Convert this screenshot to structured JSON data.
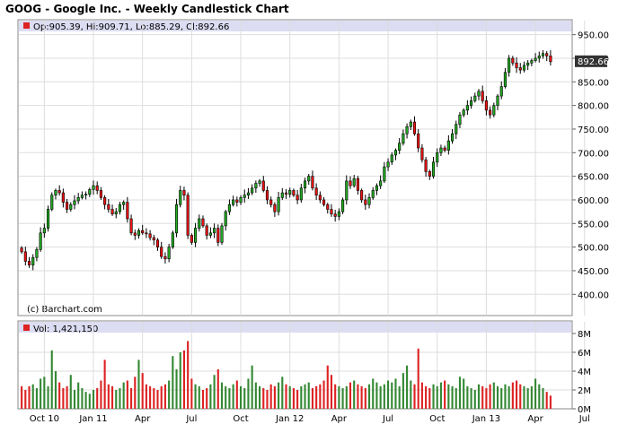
{
  "chart_data": {
    "type": "candlestick",
    "title": "GOOG - Google Inc. - Weekly Candlestick Chart",
    "ohlc_label": "Op:905.39, Hi:909.71, Lo:885.29, Cl:892.66",
    "last_price_label": "892.66",
    "last_price": 892.66,
    "copyright": "(c) Barchart.com",
    "volume_label": "Vol: 1,421,150",
    "price_ylim": [
      355,
      955
    ],
    "price_ticks": [
      950,
      900,
      850,
      800,
      750,
      700,
      650,
      600,
      550,
      500,
      450,
      400
    ],
    "price_tick_labels": [
      "950.00",
      "900.00",
      "850.00",
      "800.00",
      "750.00",
      "700.00",
      "650.00",
      "600.00",
      "550.00",
      "500.00",
      "450.00",
      "400.00"
    ],
    "volume_ylim": [
      0,
      8
    ],
    "volume_ticks": [
      0,
      2,
      4,
      6,
      8
    ],
    "volume_tick_labels": [
      "0M",
      "2M",
      "4M",
      "6M",
      "8M"
    ],
    "x_labels": [
      "Oct 10",
      "Jan 11",
      "Apr",
      "Jul",
      "Oct",
      "Jan 12",
      "Apr",
      "Jul",
      "Oct",
      "Jan 13",
      "Apr",
      "Jul"
    ],
    "x_label_weeks": [
      6,
      19,
      32,
      45,
      58,
      71,
      84,
      97,
      110,
      123,
      136,
      149
    ],
    "colors": {
      "up": "#22aa22",
      "down": "#ee1111",
      "vol_up": "#338833",
      "vol_down": "#dd2222",
      "header_band": "#dcdcf2"
    },
    "closes": [
      490,
      470,
      462,
      478,
      495,
      530,
      540,
      580,
      610,
      620,
      615,
      595,
      580,
      590,
      598,
      605,
      610,
      612,
      622,
      630,
      620,
      605,
      590,
      580,
      570,
      575,
      590,
      595,
      560,
      530,
      525,
      535,
      530,
      528,
      520,
      515,
      500,
      480,
      475,
      500,
      530,
      590,
      620,
      610,
      525,
      510,
      540,
      560,
      545,
      525,
      530,
      540,
      510,
      545,
      575,
      590,
      600,
      595,
      605,
      610,
      615,
      625,
      635,
      640,
      620,
      600,
      590,
      575,
      605,
      615,
      612,
      620,
      610,
      600,
      625,
      640,
      650,
      625,
      610,
      600,
      590,
      580,
      570,
      565,
      575,
      600,
      640,
      630,
      645,
      620,
      600,
      590,
      605,
      620,
      630,
      640,
      670,
      680,
      695,
      705,
      720,
      740,
      755,
      765,
      740,
      710,
      685,
      660,
      650,
      680,
      700,
      710,
      705,
      725,
      740,
      760,
      780,
      790,
      800,
      810,
      820,
      830,
      810,
      790,
      780,
      800,
      820,
      840,
      870,
      900,
      890,
      880,
      875,
      885,
      890,
      895,
      900,
      905,
      910,
      905,
      892.66
    ],
    "volumes": [
      2.4,
      2.0,
      2.4,
      2.6,
      2.2,
      3.2,
      3.4,
      2.4,
      6.2,
      4.0,
      2.8,
      2.2,
      2.4,
      3.6,
      2.0,
      2.8,
      2.2,
      1.8,
      1.6,
      2.0,
      2.2,
      3.0,
      5.2,
      2.6,
      2.4,
      2.0,
      2.2,
      2.8,
      3.0,
      2.2,
      3.4,
      5.2,
      3.8,
      2.6,
      2.4,
      2.2,
      2.0,
      2.4,
      2.6,
      3.0,
      5.6,
      4.2,
      6.0,
      6.2,
      7.2,
      3.2,
      2.6,
      2.4,
      2.0,
      2.2,
      2.6,
      3.6,
      4.2,
      2.8,
      2.4,
      2.2,
      2.6,
      3.0,
      2.4,
      2.2,
      3.2,
      4.6,
      2.8,
      2.4,
      2.2,
      2.0,
      2.6,
      2.4,
      2.8,
      3.4,
      2.6,
      2.4,
      2.2,
      2.0,
      2.4,
      2.6,
      2.8,
      2.2,
      2.4,
      2.6,
      3.0,
      4.6,
      3.6,
      2.6,
      2.4,
      2.2,
      2.4,
      2.8,
      3.0,
      2.6,
      2.4,
      2.2,
      2.6,
      3.2,
      2.8,
      2.4,
      2.6,
      3.0,
      2.8,
      3.2,
      2.4,
      3.8,
      4.6,
      3.0,
      2.6,
      6.4,
      2.8,
      2.4,
      2.2,
      2.6,
      2.4,
      2.8,
      3.0,
      2.6,
      2.4,
      2.2,
      3.4,
      3.2,
      2.4,
      2.2,
      2.0,
      2.6,
      2.4,
      2.2,
      2.6,
      2.8,
      2.4,
      2.2,
      2.6,
      2.4,
      2.8,
      3.0,
      2.6,
      2.4,
      2.2,
      2.4,
      3.2,
      2.6,
      2.2,
      1.8,
      1.4
    ]
  }
}
